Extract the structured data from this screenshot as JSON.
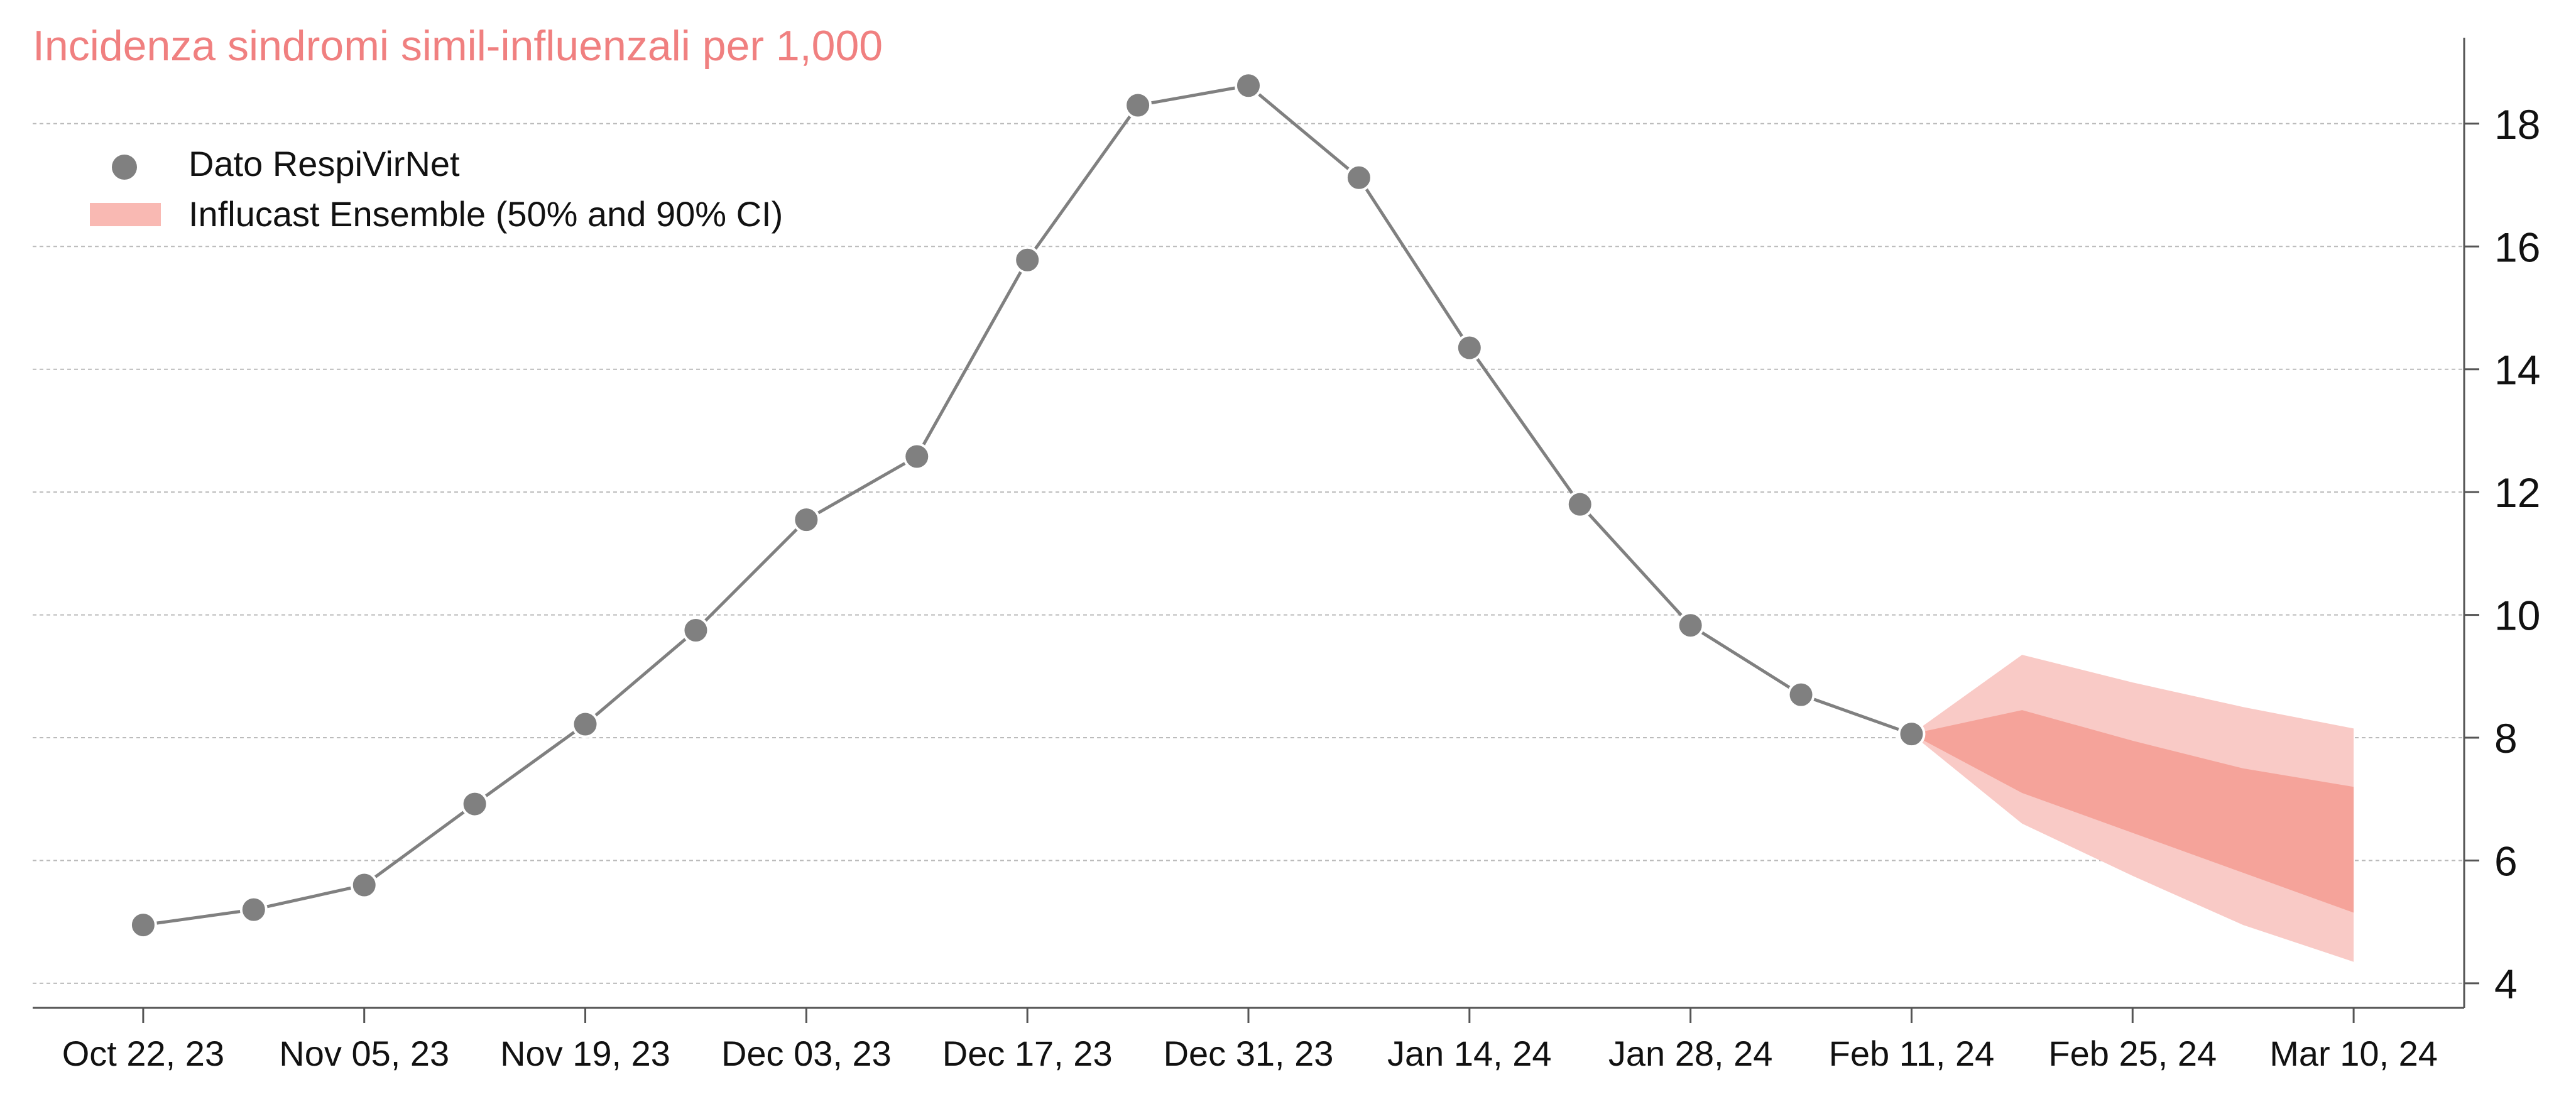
{
  "chart_data": {
    "type": "line",
    "title": "Incidenza sindromi simil-influenzali per 1,000",
    "xlabel": "",
    "ylabel": "",
    "x_tick_labels": [
      "Oct 22, 23",
      "Nov 05, 23",
      "Nov 19, 23",
      "Dec 03, 23",
      "Dec 17, 23",
      "Dec 31, 23",
      "Jan 14, 24",
      "Jan 28, 24",
      "Feb 11, 24",
      "Feb 25, 24",
      "Mar 10, 24"
    ],
    "y_ticks": [
      4,
      6,
      8,
      10,
      12,
      14,
      16,
      18
    ],
    "ylim": [
      3.6,
      19.4
    ],
    "xlim": [
      "2023-10-15",
      "2024-03-17"
    ],
    "y_axis_position": "right",
    "grid": "horizontal-dashed",
    "legend": {
      "placement": "top-left",
      "entries": [
        {
          "label": "Dato RespiVirNet",
          "marker": "circle"
        },
        {
          "label": "Influcast Ensemble (50% and 90% CI)",
          "marker": "band"
        }
      ]
    },
    "series": [
      {
        "name": "Dato RespiVirNet",
        "x": [
          "2023-10-22",
          "2023-10-29",
          "2023-11-05",
          "2023-11-12",
          "2023-11-19",
          "2023-11-26",
          "2023-12-03",
          "2023-12-10",
          "2023-12-17",
          "2023-12-24",
          "2023-12-31",
          "2024-01-07",
          "2024-01-14",
          "2024-01-21",
          "2024-01-28",
          "2024-02-04",
          "2024-02-11"
        ],
        "values": [
          4.95,
          5.2,
          5.6,
          6.92,
          8.22,
          9.75,
          11.55,
          12.58,
          15.78,
          18.3,
          18.62,
          17.12,
          14.35,
          11.8,
          9.83,
          8.7,
          8.06
        ]
      },
      {
        "name": "Influcast Ensemble (50% and 90% CI)",
        "x": [
          "2024-02-11",
          "2024-02-18",
          "2024-02-25",
          "2024-03-03",
          "2024-03-10"
        ],
        "ci90_upper": [
          8.06,
          9.35,
          8.9,
          8.5,
          8.15
        ],
        "ci50_upper": [
          8.06,
          8.45,
          7.95,
          7.5,
          7.2
        ],
        "ci50_lower": [
          8.06,
          7.1,
          6.45,
          5.8,
          5.15
        ],
        "ci90_lower": [
          8.06,
          6.6,
          5.75,
          4.95,
          4.35
        ]
      }
    ],
    "colors": {
      "points": "#808080",
      "line": "#808080",
      "ci90": "#f9cac6",
      "ci50": "#f5a39a",
      "legend_band": "#f9b9b3",
      "title": "#f08080",
      "axis": "#555555",
      "grid": "#bbbbbb",
      "text": "#111111"
    }
  }
}
